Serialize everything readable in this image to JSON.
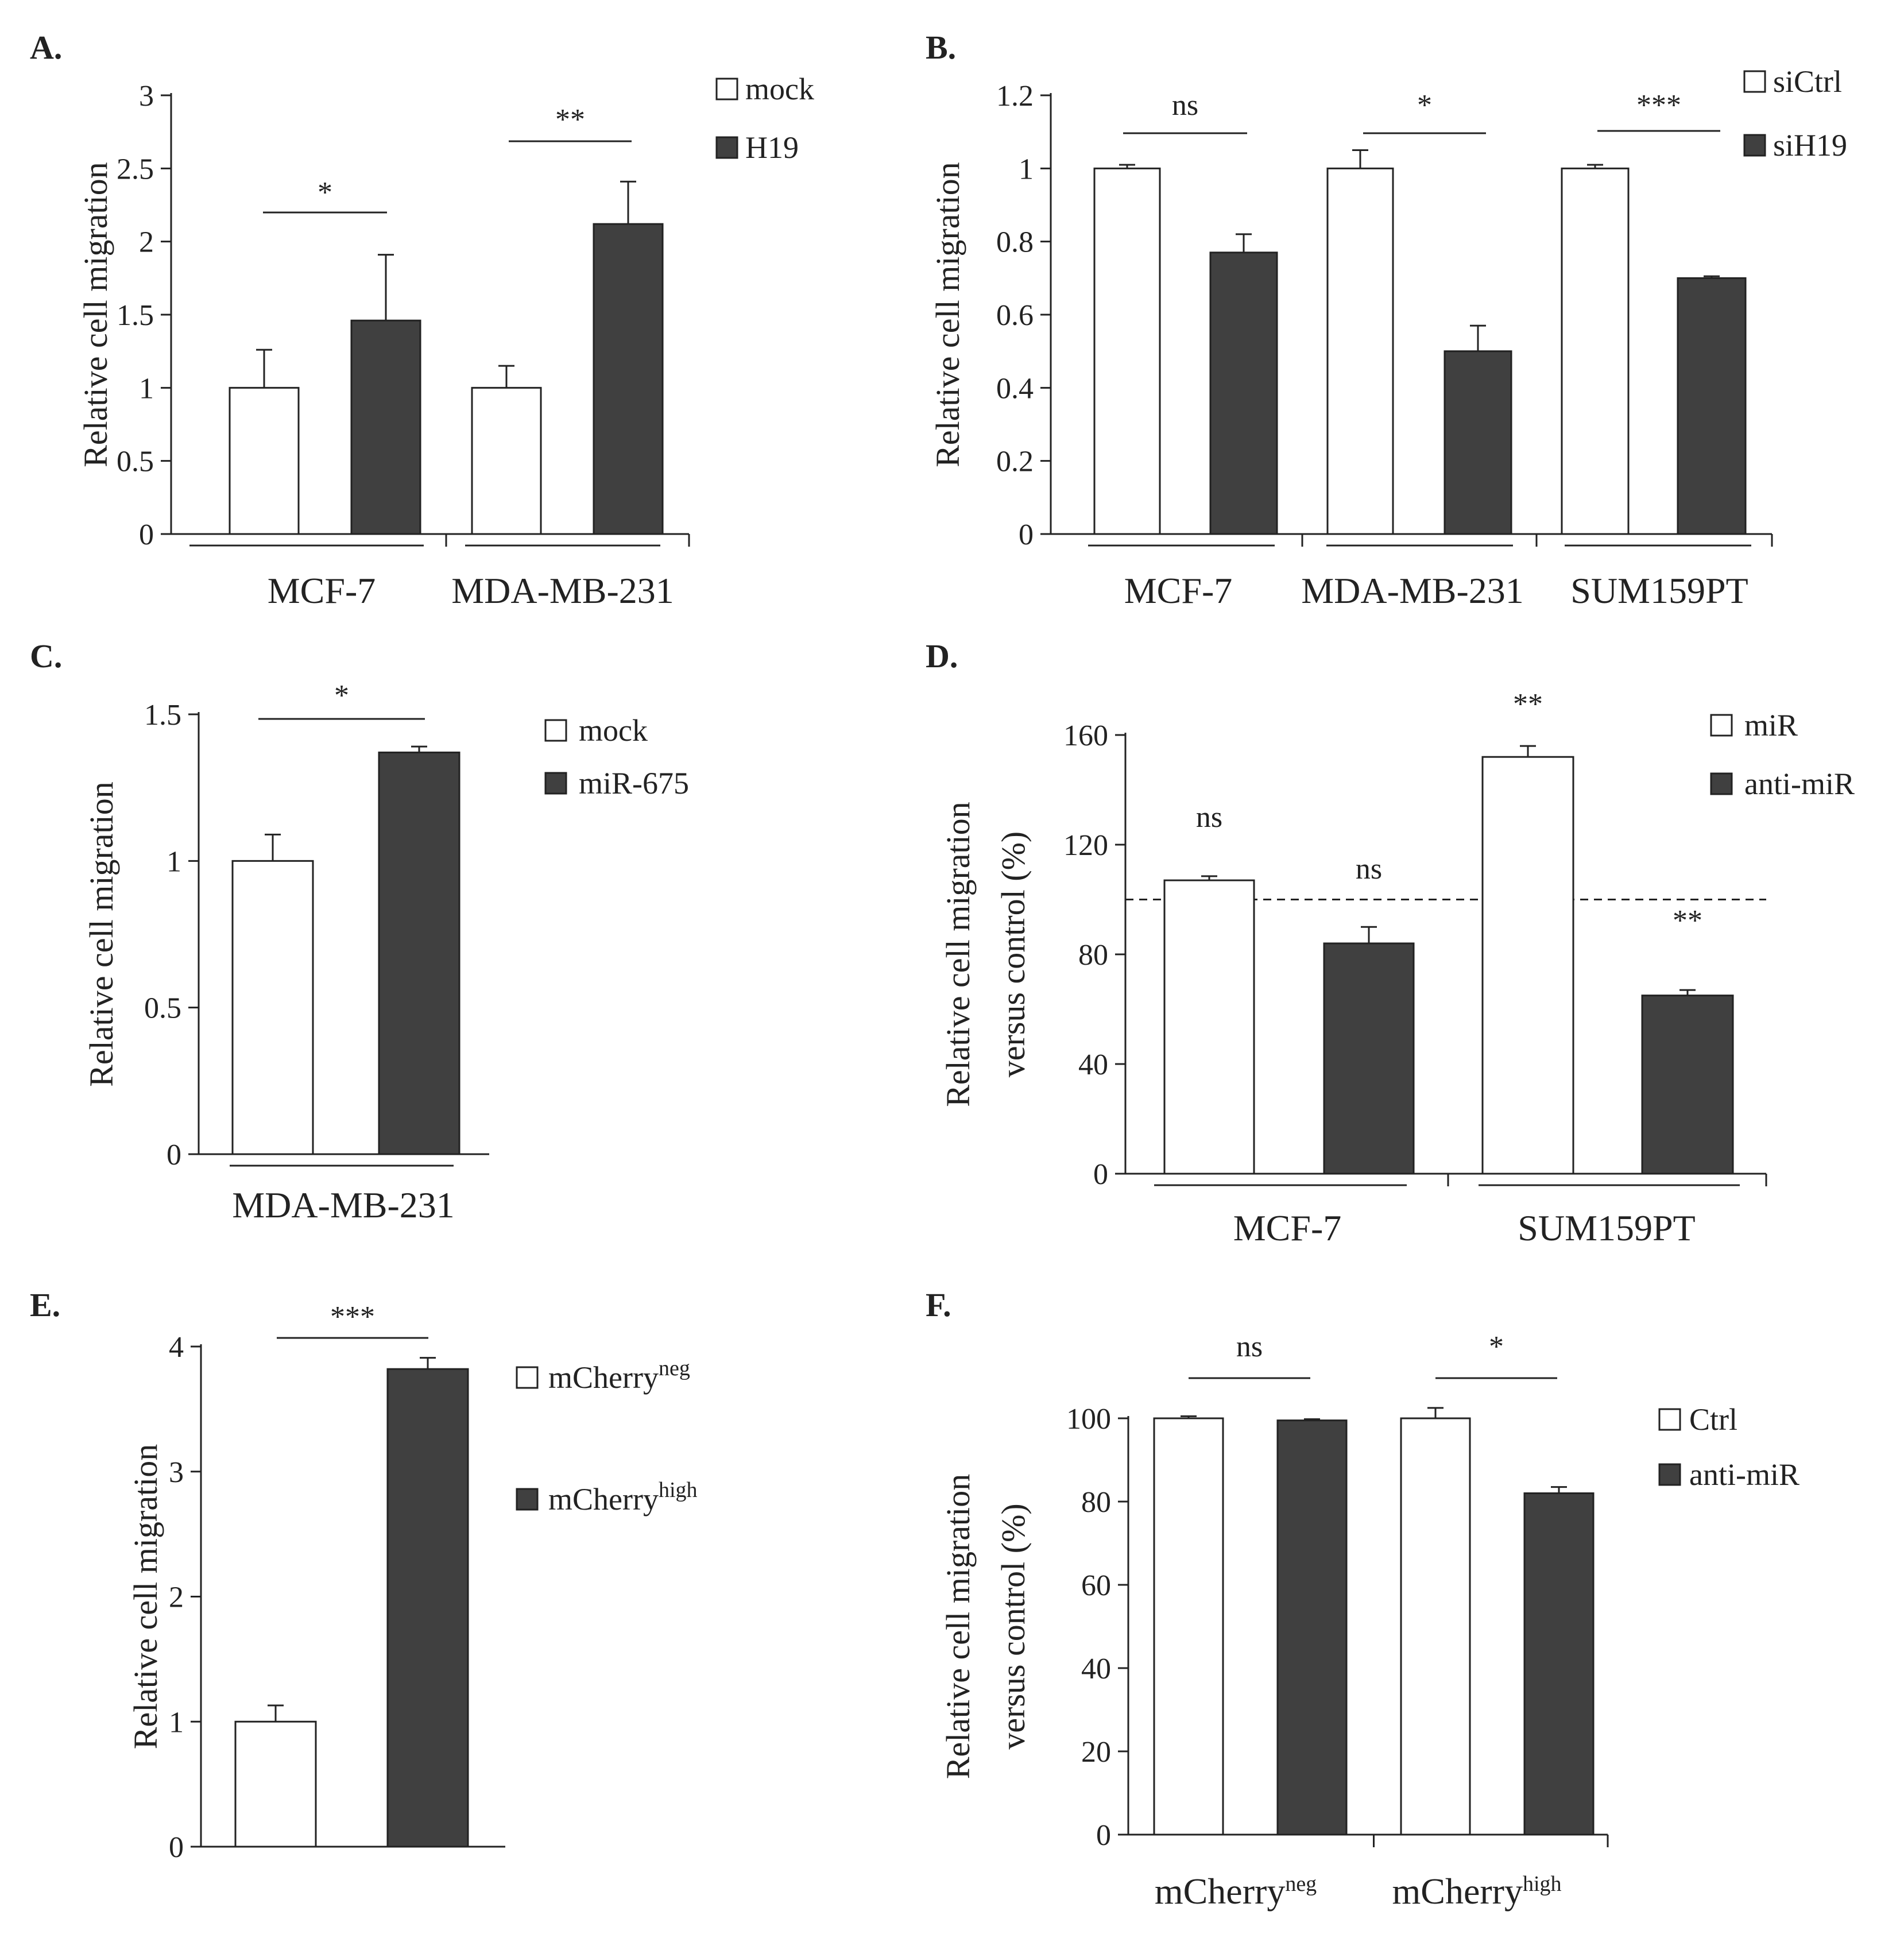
{
  "colors": {
    "bar_light": "#ffffff",
    "bar_dark": "#404040",
    "stroke": "#222222"
  },
  "chart_data": [
    {
      "panel": "A.",
      "type": "bar",
      "ylabel": "Relative cell migration",
      "ylim": [
        0,
        3
      ],
      "yticks": [
        "0",
        "0.5",
        "1",
        "1.5",
        "2",
        "2.5",
        "3"
      ],
      "categories": [
        "MCF-7",
        "MDA-MB-231"
      ],
      "legend": [
        "mock",
        "H19"
      ],
      "series": [
        {
          "name": "mock",
          "values": [
            1.0,
            1.0
          ],
          "errors": [
            0.26,
            0.15
          ]
        },
        {
          "name": "H19",
          "values": [
            1.46,
            2.12
          ],
          "errors": [
            0.45,
            0.29
          ]
        }
      ],
      "significance": [
        "*",
        "**"
      ]
    },
    {
      "panel": "B.",
      "type": "bar",
      "ylabel": "Relative cell migration",
      "ylim": [
        0,
        1.2
      ],
      "yticks": [
        "0",
        "0.2",
        "0.4",
        "0.6",
        "0.8",
        "1",
        "1.2"
      ],
      "categories": [
        "MCF-7",
        "MDA-MB-231",
        "SUM159PT"
      ],
      "legend": [
        "siCtrl",
        "siH19"
      ],
      "series": [
        {
          "name": "siCtrl",
          "values": [
            1.0,
            1.0,
            1.0
          ],
          "errors": [
            0.01,
            0.05,
            0.01
          ]
        },
        {
          "name": "siH19",
          "values": [
            0.77,
            0.5,
            0.7
          ],
          "errors": [
            0.05,
            0.07,
            0.005
          ]
        }
      ],
      "significance": [
        "ns",
        "*",
        "***"
      ]
    },
    {
      "panel": "C.",
      "type": "bar",
      "ylabel": "Relative cell migration",
      "ylim": [
        0,
        1.5
      ],
      "yticks": [
        "0",
        "0.5",
        "1",
        "1.5"
      ],
      "categories": [
        "MDA-MB-231"
      ],
      "legend": [
        "mock",
        "miR-675"
      ],
      "series": [
        {
          "name": "mock",
          "values": [
            1.0
          ],
          "errors": [
            0.09
          ]
        },
        {
          "name": "miR-675",
          "values": [
            1.37
          ],
          "errors": [
            0.02
          ]
        }
      ],
      "significance": [
        "*"
      ]
    },
    {
      "panel": "D.",
      "type": "bar",
      "ylabel": [
        "Relative cell migration",
        "versus control (%)"
      ],
      "ylim": [
        0,
        160
      ],
      "yticks": [
        "0",
        "40",
        "80",
        "120",
        "160"
      ],
      "reference_line": 100,
      "categories": [
        "MCF-7",
        "SUM159PT"
      ],
      "legend": [
        "miR",
        "anti-miR"
      ],
      "series": [
        {
          "name": "miR",
          "values": [
            107,
            152
          ],
          "errors": [
            1.5,
            4
          ],
          "significance": [
            "ns",
            "**"
          ]
        },
        {
          "name": "anti-miR",
          "values": [
            84,
            65
          ],
          "errors": [
            6,
            2
          ],
          "significance": [
            "ns",
            "**"
          ]
        }
      ]
    },
    {
      "panel": "E.",
      "type": "bar",
      "ylabel": "Relative cell migration",
      "ylim": [
        0,
        4
      ],
      "yticks": [
        "0",
        "1",
        "2",
        "3",
        "4"
      ],
      "categories": [
        ""
      ],
      "legend": [
        {
          "base": "mCherry",
          "sup": "neg"
        },
        {
          "base": "mCherry",
          "sup": "high"
        }
      ],
      "series": [
        {
          "name": "mCherry neg",
          "values": [
            1.0
          ],
          "errors": [
            0.13
          ]
        },
        {
          "name": "mCherry high",
          "values": [
            3.82
          ],
          "errors": [
            0.09
          ]
        }
      ],
      "significance": [
        "***"
      ]
    },
    {
      "panel": "F.",
      "type": "bar",
      "ylabel": [
        "Relative cell migration",
        "versus control (%)"
      ],
      "ylim": [
        0,
        100
      ],
      "yticks": [
        "0",
        "20",
        "40",
        "60",
        "80",
        "100"
      ],
      "categories": [
        {
          "base": "mCherry",
          "sup": "neg"
        },
        {
          "base": "mCherry",
          "sup": "high"
        }
      ],
      "legend": [
        "Ctrl",
        "anti-miR"
      ],
      "series": [
        {
          "name": "Ctrl",
          "values": [
            100,
            100
          ],
          "errors": [
            0.5,
            2.5
          ]
        },
        {
          "name": "anti-miR",
          "values": [
            99.5,
            82
          ],
          "errors": [
            0.3,
            1.5
          ]
        }
      ],
      "significance": [
        "ns",
        "*"
      ]
    }
  ]
}
